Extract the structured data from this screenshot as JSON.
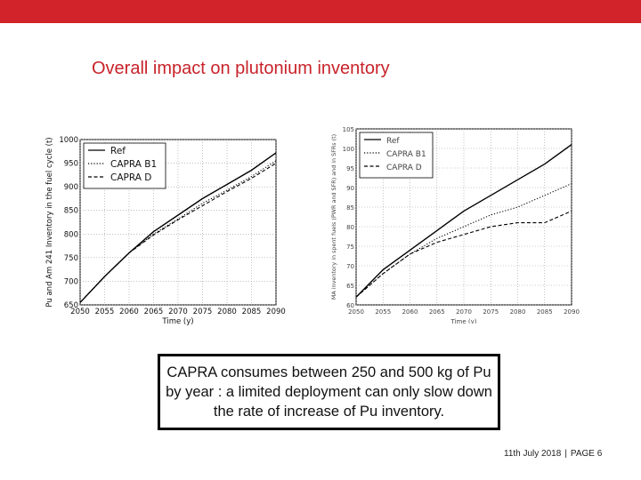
{
  "slide": {
    "title": "Overall impact on plutonium inventory",
    "note": "CAPRA consumes between 250 and 500 kg of Pu by year : a limited deployment can only slow down the rate of increase of Pu inventory.",
    "footer_date": "11th July 2018",
    "footer_separator": "|",
    "footer_page": "PAGE 6"
  },
  "colors": {
    "accent": "#d2232a",
    "title": "#c8232a"
  },
  "chart_data": [
    {
      "type": "line",
      "xlabel": "Time (y)",
      "ylabel": "Pu and Am 241 Inventory in the fuel cycle (t)",
      "xlim": [
        2050,
        2090
      ],
      "ylim": [
        650,
        1000
      ],
      "xticks": [
        2050,
        2055,
        2060,
        2065,
        2070,
        2075,
        2080,
        2085,
        2090
      ],
      "yticks": [
        650,
        700,
        750,
        800,
        850,
        900,
        950,
        1000
      ],
      "grid": true,
      "legend": "top-left",
      "series": [
        {
          "name": "Ref",
          "style": "solid",
          "x": [
            2050,
            2055,
            2060,
            2065,
            2070,
            2075,
            2080,
            2085,
            2090
          ],
          "y": [
            655,
            710,
            760,
            805,
            840,
            875,
            905,
            935,
            972
          ]
        },
        {
          "name": "CAPRA B1",
          "style": "dotted",
          "x": [
            2050,
            2055,
            2060,
            2065,
            2070,
            2075,
            2080,
            2085,
            2090
          ],
          "y": [
            655,
            710,
            760,
            800,
            832,
            865,
            893,
            922,
            955
          ]
        },
        {
          "name": "CAPRA D",
          "style": "dashed",
          "x": [
            2050,
            2055,
            2060,
            2065,
            2070,
            2075,
            2080,
            2085,
            2090
          ],
          "y": [
            655,
            710,
            760,
            798,
            830,
            860,
            890,
            918,
            950
          ]
        }
      ]
    },
    {
      "type": "line",
      "xlabel": "Time (y)",
      "ylabel": "MA inventory in spent fuels (PWR and SFR) and in SFRs (t)",
      "xlim": [
        2050,
        2090
      ],
      "ylim": [
        60,
        105
      ],
      "xticks": [
        2050,
        2055,
        2060,
        2065,
        2070,
        2075,
        2080,
        2085,
        2090
      ],
      "yticks": [
        60,
        65,
        70,
        75,
        80,
        85,
        90,
        95,
        100,
        105
      ],
      "grid": true,
      "legend": "top-left",
      "series": [
        {
          "name": "Ref",
          "style": "solid",
          "x": [
            2050,
            2055,
            2060,
            2065,
            2070,
            2075,
            2080,
            2085,
            2090
          ],
          "y": [
            62,
            69,
            74,
            79,
            84,
            88,
            92,
            96,
            101
          ]
        },
        {
          "name": "CAPRA B1",
          "style": "dotted",
          "x": [
            2050,
            2055,
            2060,
            2065,
            2070,
            2075,
            2080,
            2085,
            2090
          ],
          "y": [
            62,
            68,
            73,
            77,
            80,
            83,
            85,
            88,
            91
          ]
        },
        {
          "name": "CAPRA D",
          "style": "dashed",
          "x": [
            2050,
            2055,
            2060,
            2065,
            2070,
            2075,
            2080,
            2085,
            2090
          ],
          "y": [
            62,
            68,
            73,
            76,
            78,
            80,
            81,
            81,
            84
          ]
        }
      ]
    }
  ]
}
